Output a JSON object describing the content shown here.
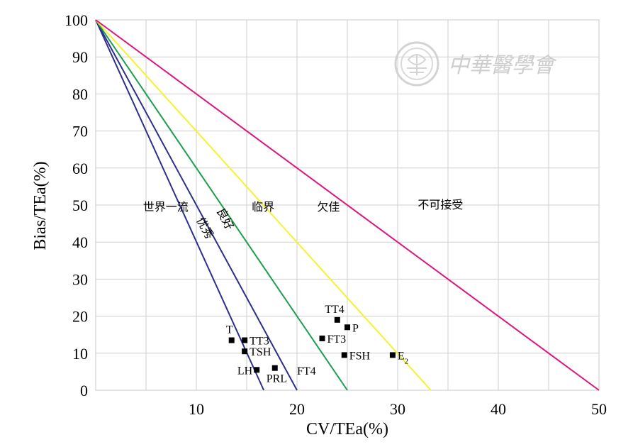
{
  "chart_data": {
    "type": "line",
    "xlabel": "CV/TEa(%)",
    "ylabel": "Bias/TEa(%)",
    "xlim": [
      0,
      50
    ],
    "ylim": [
      0,
      100
    ],
    "x_ticks": [
      10,
      20,
      30,
      40,
      50
    ],
    "y_ticks": [
      0,
      10,
      20,
      30,
      40,
      50,
      60,
      70,
      80,
      90,
      100
    ],
    "grid": true,
    "criteria_lines": [
      {
        "name": "优秀",
        "color": "#2e2e8e",
        "x_intercept": 16.7,
        "y_intercept": 100
      },
      {
        "name": "良好",
        "color": "#2e2e8e",
        "x_intercept": 20.0,
        "y_intercept": 100
      },
      {
        "name": "临界",
        "color": "#1aa04a",
        "x_intercept": 25.0,
        "y_intercept": 100
      },
      {
        "name": "欠佳",
        "color": "#f5f22e",
        "x_intercept": 33.3,
        "y_intercept": 100
      },
      {
        "name": "不可接受",
        "color": "#e0147e",
        "x_intercept": 50.0,
        "y_intercept": 100
      }
    ],
    "zone_labels": [
      {
        "text": "世界一流",
        "x": 4.7,
        "y": 48.5,
        "angle": 0
      },
      {
        "text": "优秀",
        "x": 10.0,
        "y": 46.0,
        "angle": 62
      },
      {
        "text": "良好",
        "x": 12.0,
        "y": 48.5,
        "angle": 62
      },
      {
        "text": "临界",
        "x": 15.5,
        "y": 48.5,
        "angle": 0
      },
      {
        "text": "欠佳",
        "x": 22.0,
        "y": 48.5,
        "angle": 0
      },
      {
        "text": "不可接受",
        "x": 32.0,
        "y": 49.0,
        "angle": 0
      }
    ],
    "points": [
      {
        "label": "T",
        "x": 13.5,
        "y": 13.5,
        "label_pos": "above-left"
      },
      {
        "label": "TT3",
        "x": 14.8,
        "y": 13.5,
        "label_pos": "right"
      },
      {
        "label": "TSH",
        "x": 14.8,
        "y": 10.5,
        "label_pos": "right"
      },
      {
        "label": "LH",
        "x": 16.0,
        "y": 5.5,
        "label_pos": "left"
      },
      {
        "label": "PRL",
        "x": 17.8,
        "y": 6.0,
        "label_pos": "below-right"
      },
      {
        "label": "TT4",
        "x": 24.0,
        "y": 19.0,
        "label_pos": "above-left"
      },
      {
        "label": "P",
        "x": 25.0,
        "y": 17.0,
        "label_pos": "right"
      },
      {
        "label": "FT3",
        "x": 22.5,
        "y": 14.0,
        "label_pos": "right"
      },
      {
        "label": "FSH",
        "x": 24.7,
        "y": 9.5,
        "label_pos": "right"
      },
      {
        "label": "E",
        "sub": "2",
        "x": 29.5,
        "y": 9.5,
        "label_pos": "right"
      }
    ],
    "line_annotations": [
      {
        "text": "FT4",
        "x": 20.0,
        "y": 5.0
      }
    ]
  },
  "watermark": {
    "text": "中華醫學會"
  }
}
